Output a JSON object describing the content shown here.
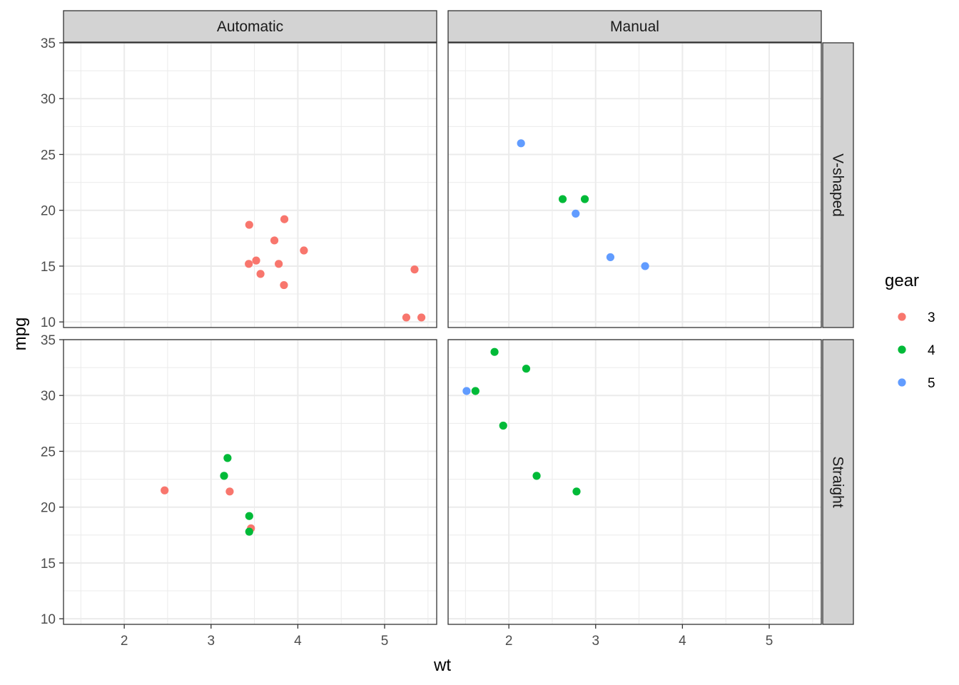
{
  "chart_data": {
    "type": "scatter",
    "xlabel": "wt",
    "ylabel": "mpg",
    "xlim": [
      1.3,
      5.6
    ],
    "ylim": [
      9.5,
      35
    ],
    "x_ticks": [
      2,
      3,
      4,
      5
    ],
    "y_ticks": [
      10,
      15,
      20,
      25,
      30,
      35
    ],
    "grid": true,
    "facet_cols": [
      "Automatic",
      "Manual"
    ],
    "facet_rows": [
      "V-shaped",
      "Straight"
    ],
    "legend": {
      "title": "gear",
      "position": "right",
      "entries": [
        {
          "label": "3",
          "color": "#F8766D"
        },
        {
          "label": "4",
          "color": "#00BA38"
        },
        {
          "label": "5",
          "color": "#619CFF"
        }
      ]
    },
    "panels": [
      {
        "col": "Automatic",
        "row": "V-shaped",
        "points": [
          {
            "x": 3.44,
            "y": 18.7,
            "gear": "3"
          },
          {
            "x": 3.57,
            "y": 14.3,
            "gear": "3"
          },
          {
            "x": 4.07,
            "y": 16.4,
            "gear": "3"
          },
          {
            "x": 3.73,
            "y": 17.3,
            "gear": "3"
          },
          {
            "x": 3.78,
            "y": 15.2,
            "gear": "3"
          },
          {
            "x": 5.25,
            "y": 10.4,
            "gear": "3"
          },
          {
            "x": 5.424,
            "y": 10.4,
            "gear": "3"
          },
          {
            "x": 5.345,
            "y": 14.7,
            "gear": "3"
          },
          {
            "x": 3.52,
            "y": 15.5,
            "gear": "3"
          },
          {
            "x": 3.435,
            "y": 15.2,
            "gear": "3"
          },
          {
            "x": 3.84,
            "y": 13.3,
            "gear": "3"
          },
          {
            "x": 3.845,
            "y": 19.2,
            "gear": "3"
          }
        ]
      },
      {
        "col": "Manual",
        "row": "V-shaped",
        "points": [
          {
            "x": 2.62,
            "y": 21.0,
            "gear": "4"
          },
          {
            "x": 2.875,
            "y": 21.0,
            "gear": "4"
          },
          {
            "x": 2.14,
            "y": 26.0,
            "gear": "5"
          },
          {
            "x": 3.17,
            "y": 15.8,
            "gear": "5"
          },
          {
            "x": 2.77,
            "y": 19.7,
            "gear": "5"
          },
          {
            "x": 3.57,
            "y": 15.0,
            "gear": "5"
          }
        ]
      },
      {
        "col": "Automatic",
        "row": "Straight",
        "points": [
          {
            "x": 3.215,
            "y": 21.4,
            "gear": "3"
          },
          {
            "x": 3.46,
            "y": 18.1,
            "gear": "3"
          },
          {
            "x": 2.465,
            "y": 21.5,
            "gear": "3"
          },
          {
            "x": 3.19,
            "y": 24.4,
            "gear": "4"
          },
          {
            "x": 3.15,
            "y": 22.8,
            "gear": "4"
          },
          {
            "x": 3.44,
            "y": 19.2,
            "gear": "4"
          },
          {
            "x": 3.44,
            "y": 17.8,
            "gear": "4"
          }
        ]
      },
      {
        "col": "Manual",
        "row": "Straight",
        "points": [
          {
            "x": 2.32,
            "y": 22.8,
            "gear": "4"
          },
          {
            "x": 2.2,
            "y": 32.4,
            "gear": "4"
          },
          {
            "x": 1.615,
            "y": 30.4,
            "gear": "4"
          },
          {
            "x": 1.835,
            "y": 33.9,
            "gear": "4"
          },
          {
            "x": 1.935,
            "y": 27.3,
            "gear": "4"
          },
          {
            "x": 2.78,
            "y": 21.4,
            "gear": "4"
          },
          {
            "x": 1.513,
            "y": 30.4,
            "gear": "5"
          }
        ]
      }
    ]
  }
}
